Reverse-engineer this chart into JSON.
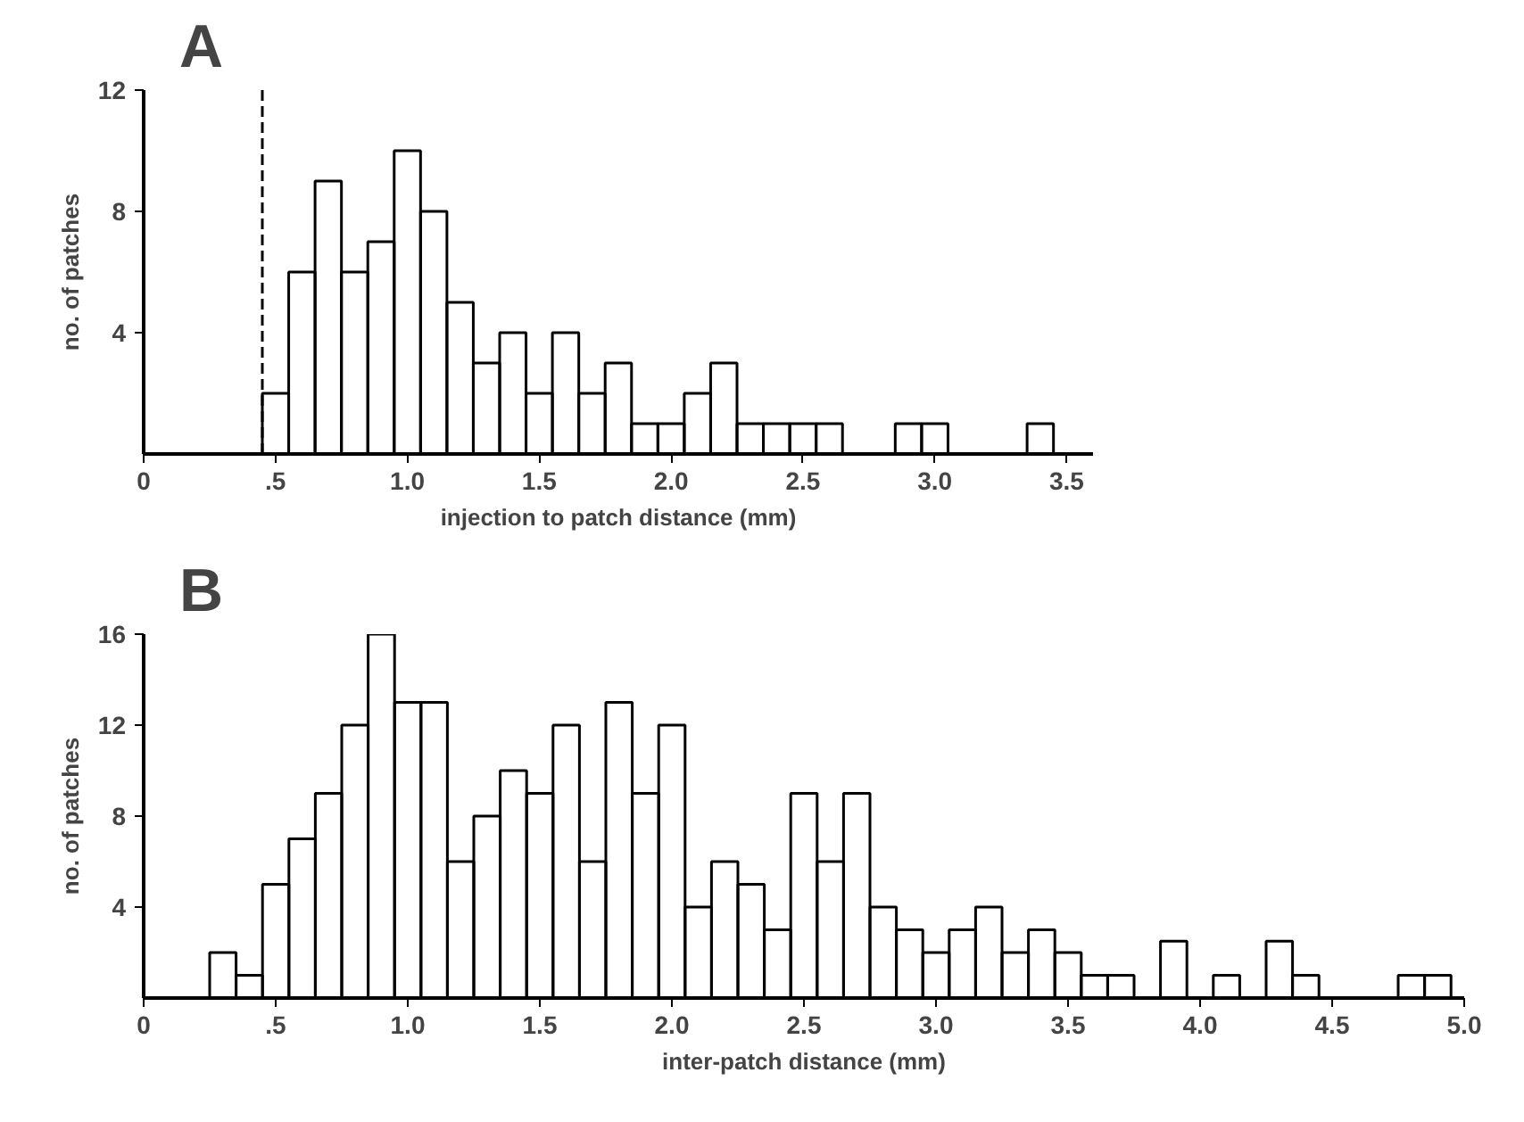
{
  "chart_data": [
    {
      "type": "histogram",
      "title": "A",
      "xlabel": "injection to patch distance (mm)",
      "ylabel": "no. of patches",
      "color": "#000000",
      "bins": [
        0.45,
        0.55,
        0.65,
        0.75,
        0.85,
        0.95,
        1.05,
        1.15,
        1.25,
        1.35,
        1.45,
        1.55,
        1.65,
        1.75,
        1.85,
        1.95,
        2.05,
        2.15,
        2.25,
        2.35,
        2.45,
        2.55,
        2.65,
        2.75,
        2.85,
        2.95,
        3.05,
        3.15,
        3.25,
        3.35,
        3.45
      ],
      "values": [
        2,
        6,
        9,
        6,
        7,
        10,
        8,
        5,
        3,
        4,
        2,
        4,
        2,
        3,
        1,
        1,
        2,
        3,
        1,
        1,
        1,
        1,
        0,
        0,
        1,
        1,
        0,
        0,
        0,
        1
      ],
      "xlim": [
        0,
        3.6
      ],
      "ylim": [
        0,
        12
      ],
      "xticks": [
        0,
        {
          "value": 0.5,
          "label": ".5"
        },
        {
          "value": 1.0,
          "label": "1.0"
        },
        1.5,
        {
          "value": 2.0,
          "label": "2.0"
        },
        2.5,
        {
          "value": 3.0,
          "label": "3.0"
        },
        3.5
      ],
      "yticks": [
        4,
        8,
        12
      ],
      "ref_lines": [
        {
          "axis": "x",
          "value": 0.45,
          "line_style": "dashed",
          "color": "#000000"
        }
      ]
    },
    {
      "type": "histogram",
      "title": "B",
      "xlabel": "inter-patch distance (mm)",
      "ylabel": "no. of patches",
      "color": "#000000",
      "bins": [
        0.25,
        0.35,
        0.45,
        0.55,
        0.65,
        0.75,
        0.85,
        0.95,
        1.05,
        1.15,
        1.25,
        1.35,
        1.45,
        1.55,
        1.65,
        1.75,
        1.85,
        1.95,
        2.05,
        2.15,
        2.25,
        2.35,
        2.45,
        2.55,
        2.65,
        2.75,
        2.85,
        2.95,
        3.05,
        3.15,
        3.25,
        3.35,
        3.45,
        3.55,
        3.65,
        3.75,
        3.85,
        3.95,
        4.05,
        4.15,
        4.25,
        4.35,
        4.45,
        4.55,
        4.65,
        4.75,
        4.85,
        4.95
      ],
      "values": [
        2,
        1,
        5,
        7,
        9,
        12,
        16,
        13,
        13,
        6,
        8,
        10,
        9,
        12,
        6,
        13,
        9,
        12,
        4,
        6,
        5,
        3,
        9,
        6,
        9,
        4,
        3,
        2,
        3,
        4,
        2,
        3,
        2,
        1,
        1,
        0,
        2.5,
        0,
        1,
        0,
        2.5,
        1,
        0,
        0,
        0,
        1,
        1
      ],
      "xlim": [
        0,
        5.0
      ],
      "ylim": [
        0,
        16
      ],
      "xticks": [
        0,
        {
          "value": 0.5,
          "label": ".5"
        },
        {
          "value": 1.0,
          "label": "1.0"
        },
        1.5,
        {
          "value": 2.0,
          "label": "2.0"
        },
        2.5,
        {
          "value": 3.0,
          "label": "3.0"
        },
        3.5,
        {
          "value": 4.0,
          "label": "4.0"
        },
        4.5,
        {
          "value": 5.0,
          "label": "5.0"
        }
      ],
      "yticks": [
        4,
        8,
        12,
        16
      ]
    }
  ]
}
